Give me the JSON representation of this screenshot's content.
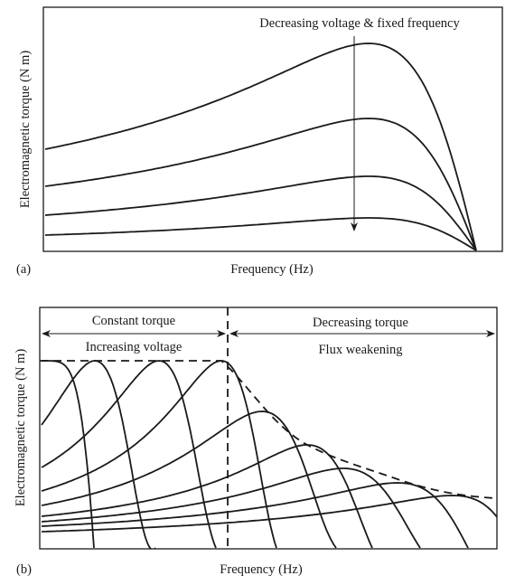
{
  "figure_a": {
    "panel_label": "(a)",
    "ylabel": "Electromagnetic torque (N m)",
    "xlabel": "Frequency (Hz)",
    "annotation": "Decreasing voltage & fixed frequency"
  },
  "figure_b": {
    "panel_label": "(b)",
    "ylabel": "Electromagnetic torque (N m)",
    "xlabel": "Frequency (Hz)",
    "region_left": {
      "title": "Constant torque",
      "subtitle": "Increasing voltage"
    },
    "region_right": {
      "title": "Decreasing torque",
      "subtitle": "Flux weakening"
    }
  }
}
